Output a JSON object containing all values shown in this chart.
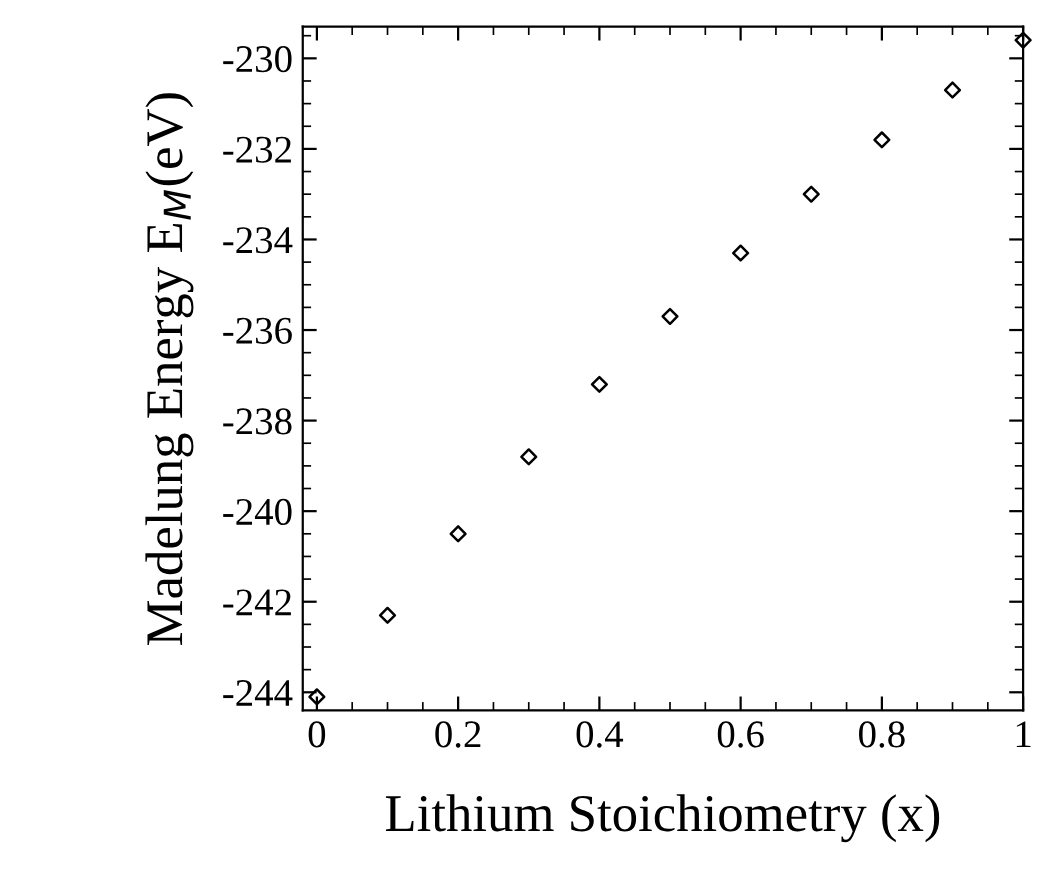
{
  "chart_data": {
    "type": "scatter",
    "xlabel": "Lithium Stoichiometry (x)",
    "ylabel": "Madelung Energy E$_{M}$(eV)",
    "x": [
      0,
      0.1,
      0.2,
      0.3,
      0.4,
      0.5,
      0.6,
      0.7,
      0.8,
      0.9,
      1.0
    ],
    "series": [
      {
        "color": "#000000",
        "values": [
          -244.1,
          -242.3,
          -240.5,
          -238.8,
          -237.2,
          -235.7,
          -234.3,
          -233.0,
          -231.8,
          -230.7,
          -229.6
        ]
      }
    ],
    "marker": "diamond",
    "xlim": [
      -0.02,
      1.0
    ],
    "ylim": [
      -244.4,
      -229.3
    ],
    "xticks": [
      0,
      0.2,
      0.4,
      0.6,
      0.8,
      1
    ],
    "yticks": [
      -244,
      -242,
      -240,
      -238,
      -236,
      -234,
      -232,
      -230
    ],
    "grid": false,
    "legend": false
  }
}
